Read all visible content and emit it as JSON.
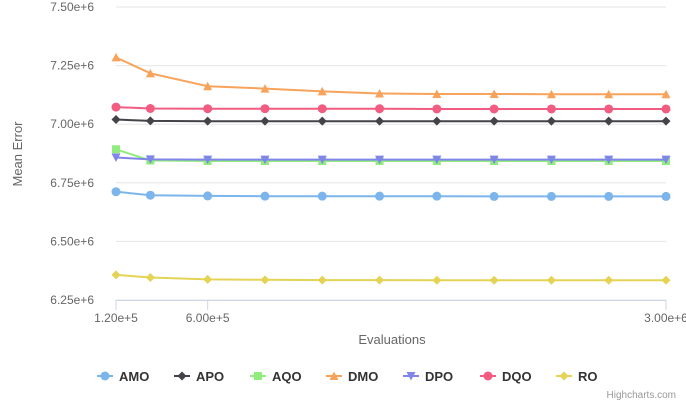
{
  "chart_data": {
    "type": "line",
    "title": "",
    "xlabel": "Evaluations",
    "ylabel": "Mean Error",
    "xlim": [
      120000,
      3000000
    ],
    "ylim": [
      6250000,
      7500000
    ],
    "x_ticks": [
      {
        "value": 120000,
        "label": "1.20e+5"
      },
      {
        "value": 600000,
        "label": "6.00e+5"
      },
      {
        "value": 3000000,
        "label": "3.00e+6"
      }
    ],
    "y_ticks": [
      {
        "value": 6250000,
        "label": "6.25e+6"
      },
      {
        "value": 6500000,
        "label": "6.50e+6"
      },
      {
        "value": 6750000,
        "label": "6.75e+6"
      },
      {
        "value": 7000000,
        "label": "7.00e+6"
      },
      {
        "value": 7250000,
        "label": "7.25e+6"
      },
      {
        "value": 7500000,
        "label": "7.50e+6"
      }
    ],
    "grid": true,
    "legend_position": "bottom",
    "credits": "Highcharts.com",
    "x": [
      120000,
      300000,
      600000,
      900000,
      1200000,
      1500000,
      1800000,
      2100000,
      2400000,
      2700000,
      3000000
    ],
    "series": [
      {
        "name": "AMO",
        "color": "#7cb5ec",
        "marker": "circle",
        "values": [
          6712000,
          6697000,
          6694000,
          6693000,
          6693000,
          6693000,
          6693000,
          6692000,
          6692000,
          6692000,
          6692000
        ]
      },
      {
        "name": "APO",
        "color": "#434348",
        "marker": "diamond",
        "values": [
          7020000,
          7014000,
          7013000,
          7013000,
          7013000,
          7013000,
          7013000,
          7013000,
          7013000,
          7013000,
          7013000
        ]
      },
      {
        "name": "AQO",
        "color": "#90ed7d",
        "marker": "square",
        "values": [
          6893000,
          6845000,
          6843000,
          6843000,
          6843000,
          6843000,
          6843000,
          6843000,
          6843000,
          6843000,
          6843000
        ]
      },
      {
        "name": "DMO",
        "color": "#f7a35c",
        "marker": "triangle",
        "values": [
          7285000,
          7217000,
          7162000,
          7152000,
          7140000,
          7131000,
          7129000,
          7129000,
          7128000,
          7128000,
          7128000
        ]
      },
      {
        "name": "DPO",
        "color": "#8085e9",
        "marker": "triangle-down",
        "values": [
          6858000,
          6850000,
          6849000,
          6849000,
          6849000,
          6849000,
          6849000,
          6849000,
          6849000,
          6849000,
          6849000
        ]
      },
      {
        "name": "DQO",
        "color": "#f15c80",
        "marker": "circle",
        "values": [
          7073000,
          7067000,
          7066000,
          7066000,
          7066000,
          7066000,
          7065000,
          7065000,
          7065000,
          7065000,
          7065000
        ]
      },
      {
        "name": "RO",
        "color": "#e4d354",
        "marker": "diamond",
        "values": [
          6357000,
          6346000,
          6338000,
          6336000,
          6335000,
          6335000,
          6334000,
          6334000,
          6334000,
          6334000,
          6334000
        ]
      }
    ]
  }
}
